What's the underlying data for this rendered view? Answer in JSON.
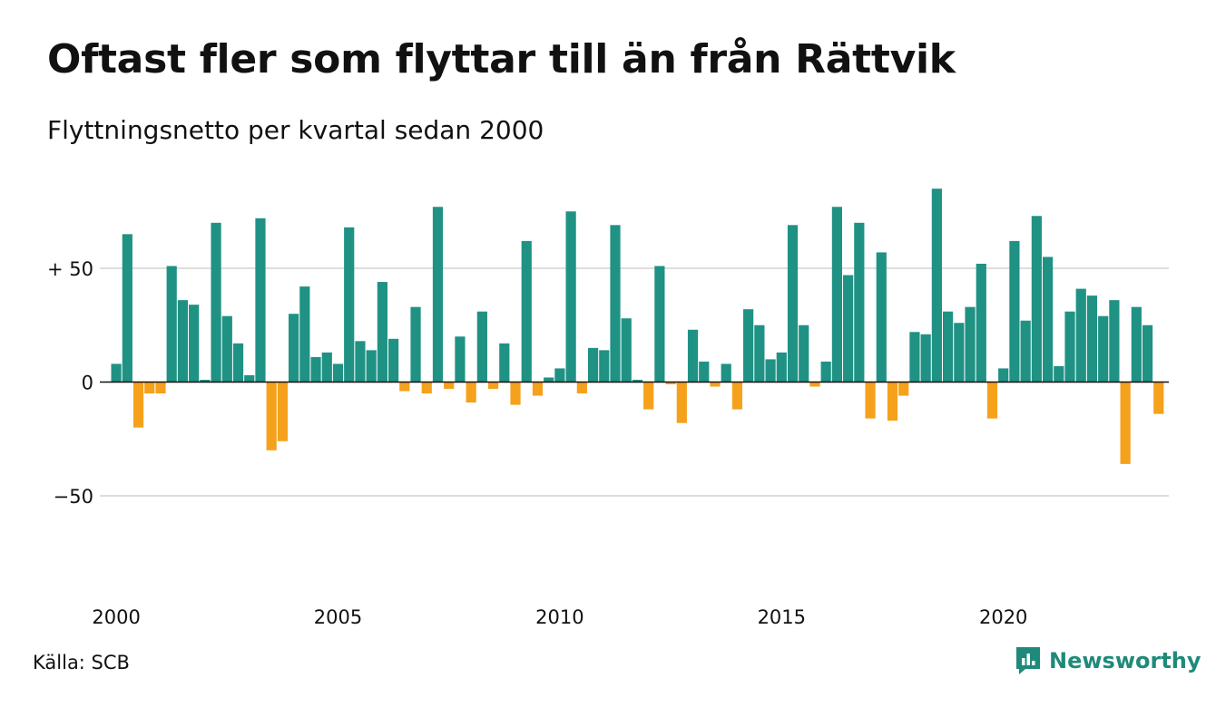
{
  "title": "Oftast fler som flyttar till än från Rättvik",
  "subtitle": "Flyttningsnetto per kvartal sedan 2000",
  "source": "Källa: SCB",
  "brand": {
    "name": "Newsworthy",
    "color": "#1f8a7a"
  },
  "colors": {
    "positive": "#1f9284",
    "negative": "#f5a11c",
    "grid": "#dddddd",
    "baseline": "#111111"
  },
  "chart_data": {
    "type": "bar",
    "ylim": [
      -85,
      85
    ],
    "grid": true,
    "yticks": [
      {
        "value": 50,
        "label": "+ 50"
      },
      {
        "value": 0,
        "label": "0"
      },
      {
        "value": -50,
        "label": "−50"
      }
    ],
    "xticks": [
      {
        "year": 2000,
        "label": "2000"
      },
      {
        "year": 2005,
        "label": "2005"
      },
      {
        "year": 2010,
        "label": "2010"
      },
      {
        "year": 2015,
        "label": "2015"
      },
      {
        "year": 2020,
        "label": "2020"
      }
    ],
    "start": {
      "year": 2000,
      "quarter": 1
    },
    "values": [
      8,
      65,
      -20,
      -5,
      -5,
      51,
      36,
      34,
      1,
      70,
      29,
      17,
      3,
      72,
      -30,
      -26,
      30,
      42,
      11,
      13,
      8,
      68,
      18,
      14,
      44,
      19,
      -4,
      33,
      -5,
      77,
      -3,
      20,
      -9,
      31,
      -3,
      17,
      -10,
      62,
      -6,
      2,
      6,
      75,
      -5,
      15,
      14,
      69,
      28,
      1,
      -12,
      51,
      -1,
      -18,
      23,
      9,
      -2,
      8,
      -12,
      32,
      25,
      10,
      13,
      69,
      25,
      -2,
      9,
      77,
      47,
      70,
      -16,
      57,
      -17,
      -6,
      22,
      21,
      85,
      31,
      26,
      33,
      52,
      -16,
      6,
      62,
      27,
      73,
      55,
      7,
      31,
      41,
      38,
      29,
      36,
      -36,
      33,
      25,
      -14
    ]
  }
}
